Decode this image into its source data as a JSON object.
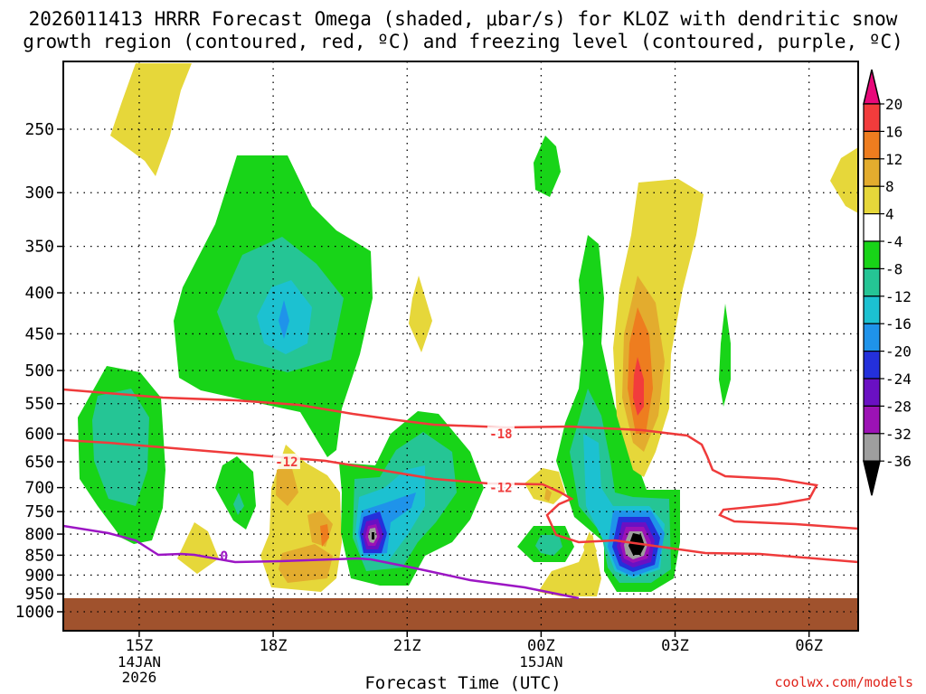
{
  "title_line1": "2026011413 HRRR Forecast Omega (shaded, μbar/s) for KLOZ with dendritic snow",
  "title_line2": "growth region (contoured, red, ºC) and freezing level (contoured, purple, ºC)",
  "credit": "coolwx.com/models",
  "chart_data": {
    "type": "time-height contour",
    "title": "2026011413 HRRR Forecast Omega (shaded, μbar/s) for KLOZ with dendritic snow growth region (contoured, red, ºC) and freezing level (contoured, purple, ºC)",
    "xlabel": "Forecast Time (UTC)",
    "ylabel": "",
    "xlim_hours": [
      13.3,
      31.1
    ],
    "x_ticks": [
      {
        "hour": 15,
        "label": "15Z",
        "sub": [
          "14JAN",
          "2026"
        ]
      },
      {
        "hour": 18,
        "label": "18Z",
        "sub": []
      },
      {
        "hour": 21,
        "label": "21Z",
        "sub": []
      },
      {
        "hour": 24,
        "label": "00Z",
        "sub": [
          "15JAN"
        ]
      },
      {
        "hour": 27,
        "label": "03Z",
        "sub": []
      },
      {
        "hour": 30,
        "label": "06Z",
        "sub": []
      }
    ],
    "y_ticks": [
      250,
      300,
      350,
      400,
      450,
      500,
      550,
      600,
      650,
      700,
      750,
      800,
      850,
      900,
      950,
      1000
    ],
    "y_axis": "pressure hPa (log), surface ~960 hPa",
    "colorbar": {
      "labels": [
        "20",
        "16",
        "12",
        "8",
        "4",
        "-4",
        "-8",
        "-12",
        "-16",
        "-20",
        "-24",
        "-28",
        "-32",
        "-36"
      ],
      "colors": [
        "#e8097a",
        "#f23c3c",
        "#ee7d1f",
        "#e3ac2e",
        "#e6d73a",
        "#ffffff",
        "#18d418",
        "#25c595",
        "#1cc1d1",
        "#1f93ea",
        "#2430db",
        "#6a10c3",
        "#9c12b5",
        "#9e9e9e",
        "#000000"
      ]
    },
    "dendritic_isotherms_C": [
      -12,
      -18
    ],
    "dendritic_labels": [
      {
        "text": "-12",
        "hour": 18.3,
        "p": 650
      },
      {
        "text": "-12",
        "hour": 23.1,
        "p": 700
      },
      {
        "text": "-18",
        "hour": 23.1,
        "p": 600
      }
    ],
    "freezing_level_label": {
      "text": "0",
      "hour": 16.9,
      "p": 850
    },
    "ground_color": "#a0522d",
    "omega_regions_ubar_s": [
      {
        "name": "ascent-18Z-mid",
        "min": -16,
        "hour": 18,
        "p": 450
      },
      {
        "name": "ascent-20Z-low",
        "min": -36,
        "hour": 20,
        "p": 820
      },
      {
        "name": "ascent-02Z-low",
        "min": -36,
        "hour": 26,
        "p": 830
      },
      {
        "name": "subsidence-02Z-mid",
        "max": 20,
        "hour": 26,
        "p": 520
      },
      {
        "name": "subsidence-15Z-upper",
        "max": 8,
        "hour": 15,
        "p": 260
      }
    ]
  }
}
